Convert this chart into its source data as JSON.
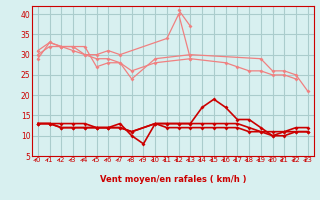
{
  "x": [
    0,
    1,
    2,
    3,
    4,
    5,
    6,
    7,
    8,
    9,
    10,
    11,
    12,
    13,
    14,
    15,
    16,
    17,
    18,
    19,
    20,
    21,
    22,
    23
  ],
  "series_light": [
    [
      29,
      33,
      32,
      32,
      32,
      27,
      28,
      28,
      24,
      null,
      29,
      null,
      null,
      30,
      null,
      null,
      null,
      null,
      null,
      29,
      26,
      26,
      25,
      21
    ],
    [
      30,
      32,
      32,
      31,
      30,
      29,
      29,
      28,
      26,
      null,
      28,
      null,
      null,
      29,
      null,
      null,
      28,
      27,
      26,
      26,
      25,
      25,
      24,
      null
    ],
    [
      31,
      33,
      32,
      32,
      30,
      30,
      31,
      30,
      null,
      null,
      null,
      34,
      40,
      29,
      null,
      null,
      null,
      null,
      null,
      null,
      null,
      null,
      null,
      null
    ],
    [
      null,
      null,
      null,
      null,
      null,
      null,
      null,
      null,
      null,
      null,
      null,
      null,
      41,
      37,
      null,
      null,
      null,
      null,
      null,
      null,
      null,
      null,
      null,
      null
    ]
  ],
  "series_dark": [
    [
      13,
      13,
      13,
      13,
      13,
      12,
      12,
      13,
      10,
      8,
      13,
      13,
      13,
      13,
      17,
      19,
      17,
      14,
      14,
      12,
      10,
      11,
      12,
      12
    ],
    [
      13,
      13,
      12,
      12,
      12,
      12,
      12,
      12,
      11,
      null,
      13,
      13,
      13,
      13,
      13,
      13,
      13,
      13,
      12,
      11,
      11,
      11,
      11,
      11
    ],
    [
      13,
      13,
      12,
      12,
      12,
      12,
      12,
      12,
      11,
      null,
      13,
      12,
      12,
      12,
      12,
      12,
      12,
      12,
      11,
      11,
      10,
      10,
      11,
      11
    ]
  ],
  "bg_color": "#d8f0f0",
  "grid_color": "#aacccc",
  "light_color": "#f08080",
  "dark_color": "#cc0000",
  "xlabel": "Vent moyen/en rafales ( km/h )",
  "ylim": [
    5,
    42
  ],
  "xlim": [
    -0.5,
    23.5
  ],
  "yticks": [
    5,
    10,
    15,
    20,
    25,
    30,
    35,
    40
  ],
  "xticks": [
    0,
    1,
    2,
    3,
    4,
    5,
    6,
    7,
    8,
    9,
    10,
    11,
    12,
    13,
    14,
    15,
    16,
    17,
    18,
    19,
    20,
    21,
    22,
    23
  ]
}
